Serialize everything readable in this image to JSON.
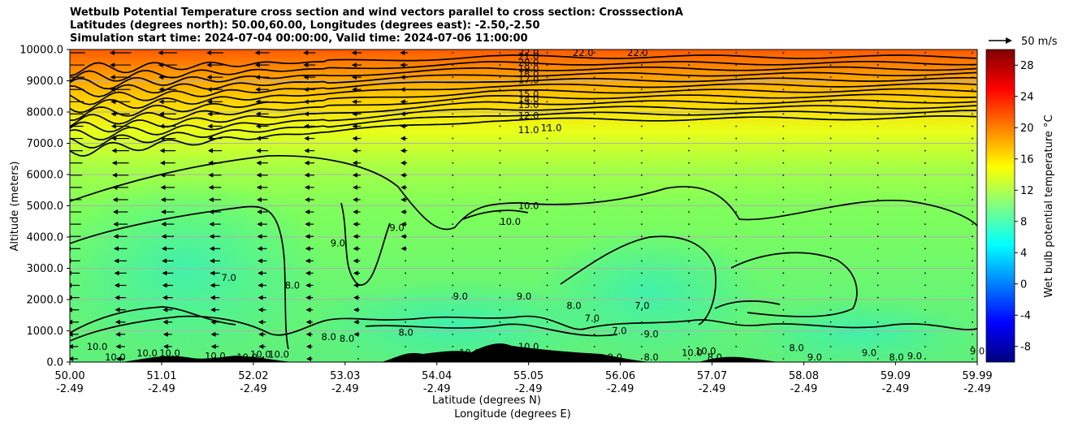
{
  "title_lines": [
    "Wetbulb Potential Temperature cross section and wind vectors parallel to cross section: CrosssectionA",
    "Latitudes (degrees north): 50.00,60.00, Longitudes (degrees east): -2.50,-2.50",
    "Simulation start time: 2024-07-04 00:00:00, Valid time: 2024-07-06 11:00:00"
  ],
  "chart_data": {
    "type": "heatmap",
    "title": "Wetbulb Potential Temperature cross section and wind vectors parallel to cross section: CrosssectionA",
    "xlabel_lines": [
      "Latitude (degrees N)",
      "Longitude (degrees E)"
    ],
    "ylabel": "Altitude (meters)",
    "ylim": [
      0,
      10000
    ],
    "xlim": [
      50.0,
      59.99
    ],
    "y_ticks": [
      "0.0",
      "1000.0",
      "2000.0",
      "3000.0",
      "4000.0",
      "5000.0",
      "6000.0",
      "7000.0",
      "8000.0",
      "9000.0",
      "10000.0"
    ],
    "y_tick_values": [
      0,
      1000,
      2000,
      3000,
      4000,
      5000,
      6000,
      7000,
      8000,
      9000,
      10000
    ],
    "x_ticks": [
      {
        "lat": "50.00",
        "lon": "-2.49"
      },
      {
        "lat": "51.01",
        "lon": "-2.49"
      },
      {
        "lat": "52.02",
        "lon": "-2.49"
      },
      {
        "lat": "53.03",
        "lon": "-2.49"
      },
      {
        "lat": "54.04",
        "lon": "-2.49"
      },
      {
        "lat": "55.05",
        "lon": "-2.49"
      },
      {
        "lat": "56.06",
        "lon": "-2.49"
      },
      {
        "lat": "57.07",
        "lon": "-2.49"
      },
      {
        "lat": "58.08",
        "lon": "-2.49"
      },
      {
        "lat": "59.09",
        "lon": "-2.49"
      },
      {
        "lat": "59.99",
        "lon": "-2.49"
      }
    ],
    "x_tick_values": [
      50.0,
      51.01,
      52.02,
      53.03,
      54.04,
      55.05,
      56.06,
      57.07,
      58.08,
      59.09,
      59.99
    ],
    "grid": true,
    "colorbar": {
      "label": "Wet bulb potential temperature $^\\circ$C",
      "label_display": "Wet bulb potential temperature °C",
      "range": [
        -10,
        30
      ],
      "ticks": [
        "-8",
        "-4",
        "0",
        "4",
        "8",
        "12",
        "16",
        "20",
        "24",
        "28"
      ],
      "tick_values": [
        -8,
        -4,
        0,
        4,
        8,
        12,
        16,
        20,
        24,
        28
      ],
      "colormap": "jet"
    },
    "quiver_key": "50 m/s",
    "contour_labels": [
      {
        "text": "22.0",
        "x": 55.05,
        "y": 9960
      },
      {
        "text": "21.0",
        "x": 55.05,
        "y": 9780
      },
      {
        "text": "20.0",
        "x": 55.05,
        "y": 9590
      },
      {
        "text": "19.0",
        "x": 55.05,
        "y": 9390
      },
      {
        "text": "18.0",
        "x": 55.05,
        "y": 9220
      },
      {
        "text": "17.0",
        "x": 55.05,
        "y": 9030
      },
      {
        "text": "15.0",
        "x": 55.05,
        "y": 8570
      },
      {
        "text": "14.0",
        "x": 55.05,
        "y": 8420
      },
      {
        "text": "13.0",
        "x": 55.05,
        "y": 8240
      },
      {
        "text": "12.0",
        "x": 55.05,
        "y": 7880
      },
      {
        "text": "11.0",
        "x": 55.05,
        "y": 7430
      },
      {
        "text": "11.0",
        "x": 55.3,
        "y": 7490
      },
      {
        "text": "22.0",
        "x": 55.65,
        "y": 10000
      },
      {
        "text": "22.0",
        "x": 56.25,
        "y": 10000
      },
      {
        "text": "10.0",
        "x": 55.05,
        "y": 5000
      },
      {
        "text": "10.0",
        "x": 54.85,
        "y": 4500
      },
      {
        "text": "9.0",
        "x": 53.6,
        "y": 4300
      },
      {
        "text": "9.0",
        "x": 52.95,
        "y": 3800
      },
      {
        "text": "8.0",
        "x": 52.45,
        "y": 2450
      },
      {
        "text": "7.0",
        "x": 51.75,
        "y": 2700
      },
      {
        "text": "9.0",
        "x": 54.3,
        "y": 2100
      },
      {
        "text": "9.0",
        "x": 55.0,
        "y": 2100
      },
      {
        "text": "8.0",
        "x": 55.55,
        "y": 1800
      },
      {
        "text": "7.0",
        "x": 55.75,
        "y": 1400
      },
      {
        "text": "7.0",
        "x": 56.3,
        "y": 1800
      },
      {
        "text": "7.0",
        "x": 56.05,
        "y": 1000
      },
      {
        "text": "9.0",
        "x": 56.4,
        "y": 900
      },
      {
        "text": "8.0",
        "x": 53.7,
        "y": 950
      },
      {
        "text": "8.0",
        "x": 52.85,
        "y": 800
      },
      {
        "text": "8.0",
        "x": 53.05,
        "y": 750
      },
      {
        "text": "10.0",
        "x": 50.3,
        "y": 500
      },
      {
        "text": "10.0",
        "x": 50.5,
        "y": 100
      },
      {
        "text": "10.0",
        "x": 50.85,
        "y": 280
      },
      {
        "text": "10.0",
        "x": 51.1,
        "y": 280
      },
      {
        "text": "10.0",
        "x": 51.6,
        "y": 200
      },
      {
        "text": "10.0",
        "x": 51.95,
        "y": 100
      },
      {
        "text": "10.0",
        "x": 52.1,
        "y": 250
      },
      {
        "text": "10.0",
        "x": 52.3,
        "y": 250
      },
      {
        "text": "10.0",
        "x": 54.4,
        "y": 300
      },
      {
        "text": "10.0",
        "x": 55.05,
        "y": 500
      },
      {
        "text": "8.0",
        "x": 57.1,
        "y": 100
      },
      {
        "text": "10.0",
        "x": 56.85,
        "y": 300
      },
      {
        "text": "10.0",
        "x": 57.0,
        "y": 350
      },
      {
        "text": "8.0",
        "x": 56.4,
        "y": 30
      },
      {
        "text": "9.0",
        "x": 56.0,
        "y": 150
      },
      {
        "text": "8.0",
        "x": 58.0,
        "y": 450
      },
      {
        "text": "9.0",
        "x": 58.2,
        "y": 150
      },
      {
        "text": "9.0",
        "x": 58.8,
        "y": 300
      },
      {
        "text": "9.0",
        "x": 59.3,
        "y": 200
      },
      {
        "text": "8.0",
        "x": 59.1,
        "y": 80
      },
      {
        "text": "9.0",
        "x": 59.99,
        "y": 350
      }
    ]
  }
}
